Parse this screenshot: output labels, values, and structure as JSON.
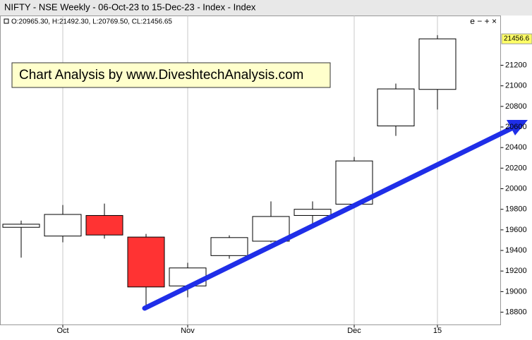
{
  "chart_data": {
    "type": "candlestick",
    "title": "NIFTY - NSE Weekly - 06-Oct-23 to 15-Dec-23 - Index - Index",
    "ohlc_info": "O:20965.30, H:21492.30, L:20769.50, CL:21456.65",
    "controls": "e − + ×",
    "annotation": "Chart Analysis by www.DiveshtechAnalysis.com",
    "last_value_label": "21456.6",
    "categories": [
      null,
      "Oct",
      null,
      null,
      "Nov",
      null,
      null,
      null,
      "Dec",
      null,
      "15"
    ],
    "open": [
      19625,
      19540,
      19740,
      19530,
      19055,
      19350,
      19490,
      19740,
      19850,
      20610,
      20965.3
    ],
    "high": [
      19690,
      19842,
      19855,
      19561,
      19280,
      19547,
      19877,
      19877,
      20309,
      21022,
      21492.3
    ],
    "low": [
      19330,
      19479,
      19515,
      18827,
      18944,
      19320,
      19479,
      19650,
      19842,
      20514,
      20769.5
    ],
    "close": [
      19655,
      19750,
      19550,
      19045,
      19230,
      19525,
      19730,
      19800,
      20270,
      20970,
      21456.65
    ],
    "up_color": "#ffffff",
    "down_color": "#ff3333",
    "ylim": [
      18677,
      21680
    ],
    "yticks": [
      18800,
      19000,
      19200,
      19400,
      19600,
      19800,
      20000,
      20200,
      20400,
      20600,
      20800,
      21000,
      21200
    ],
    "grid": "x"
  }
}
